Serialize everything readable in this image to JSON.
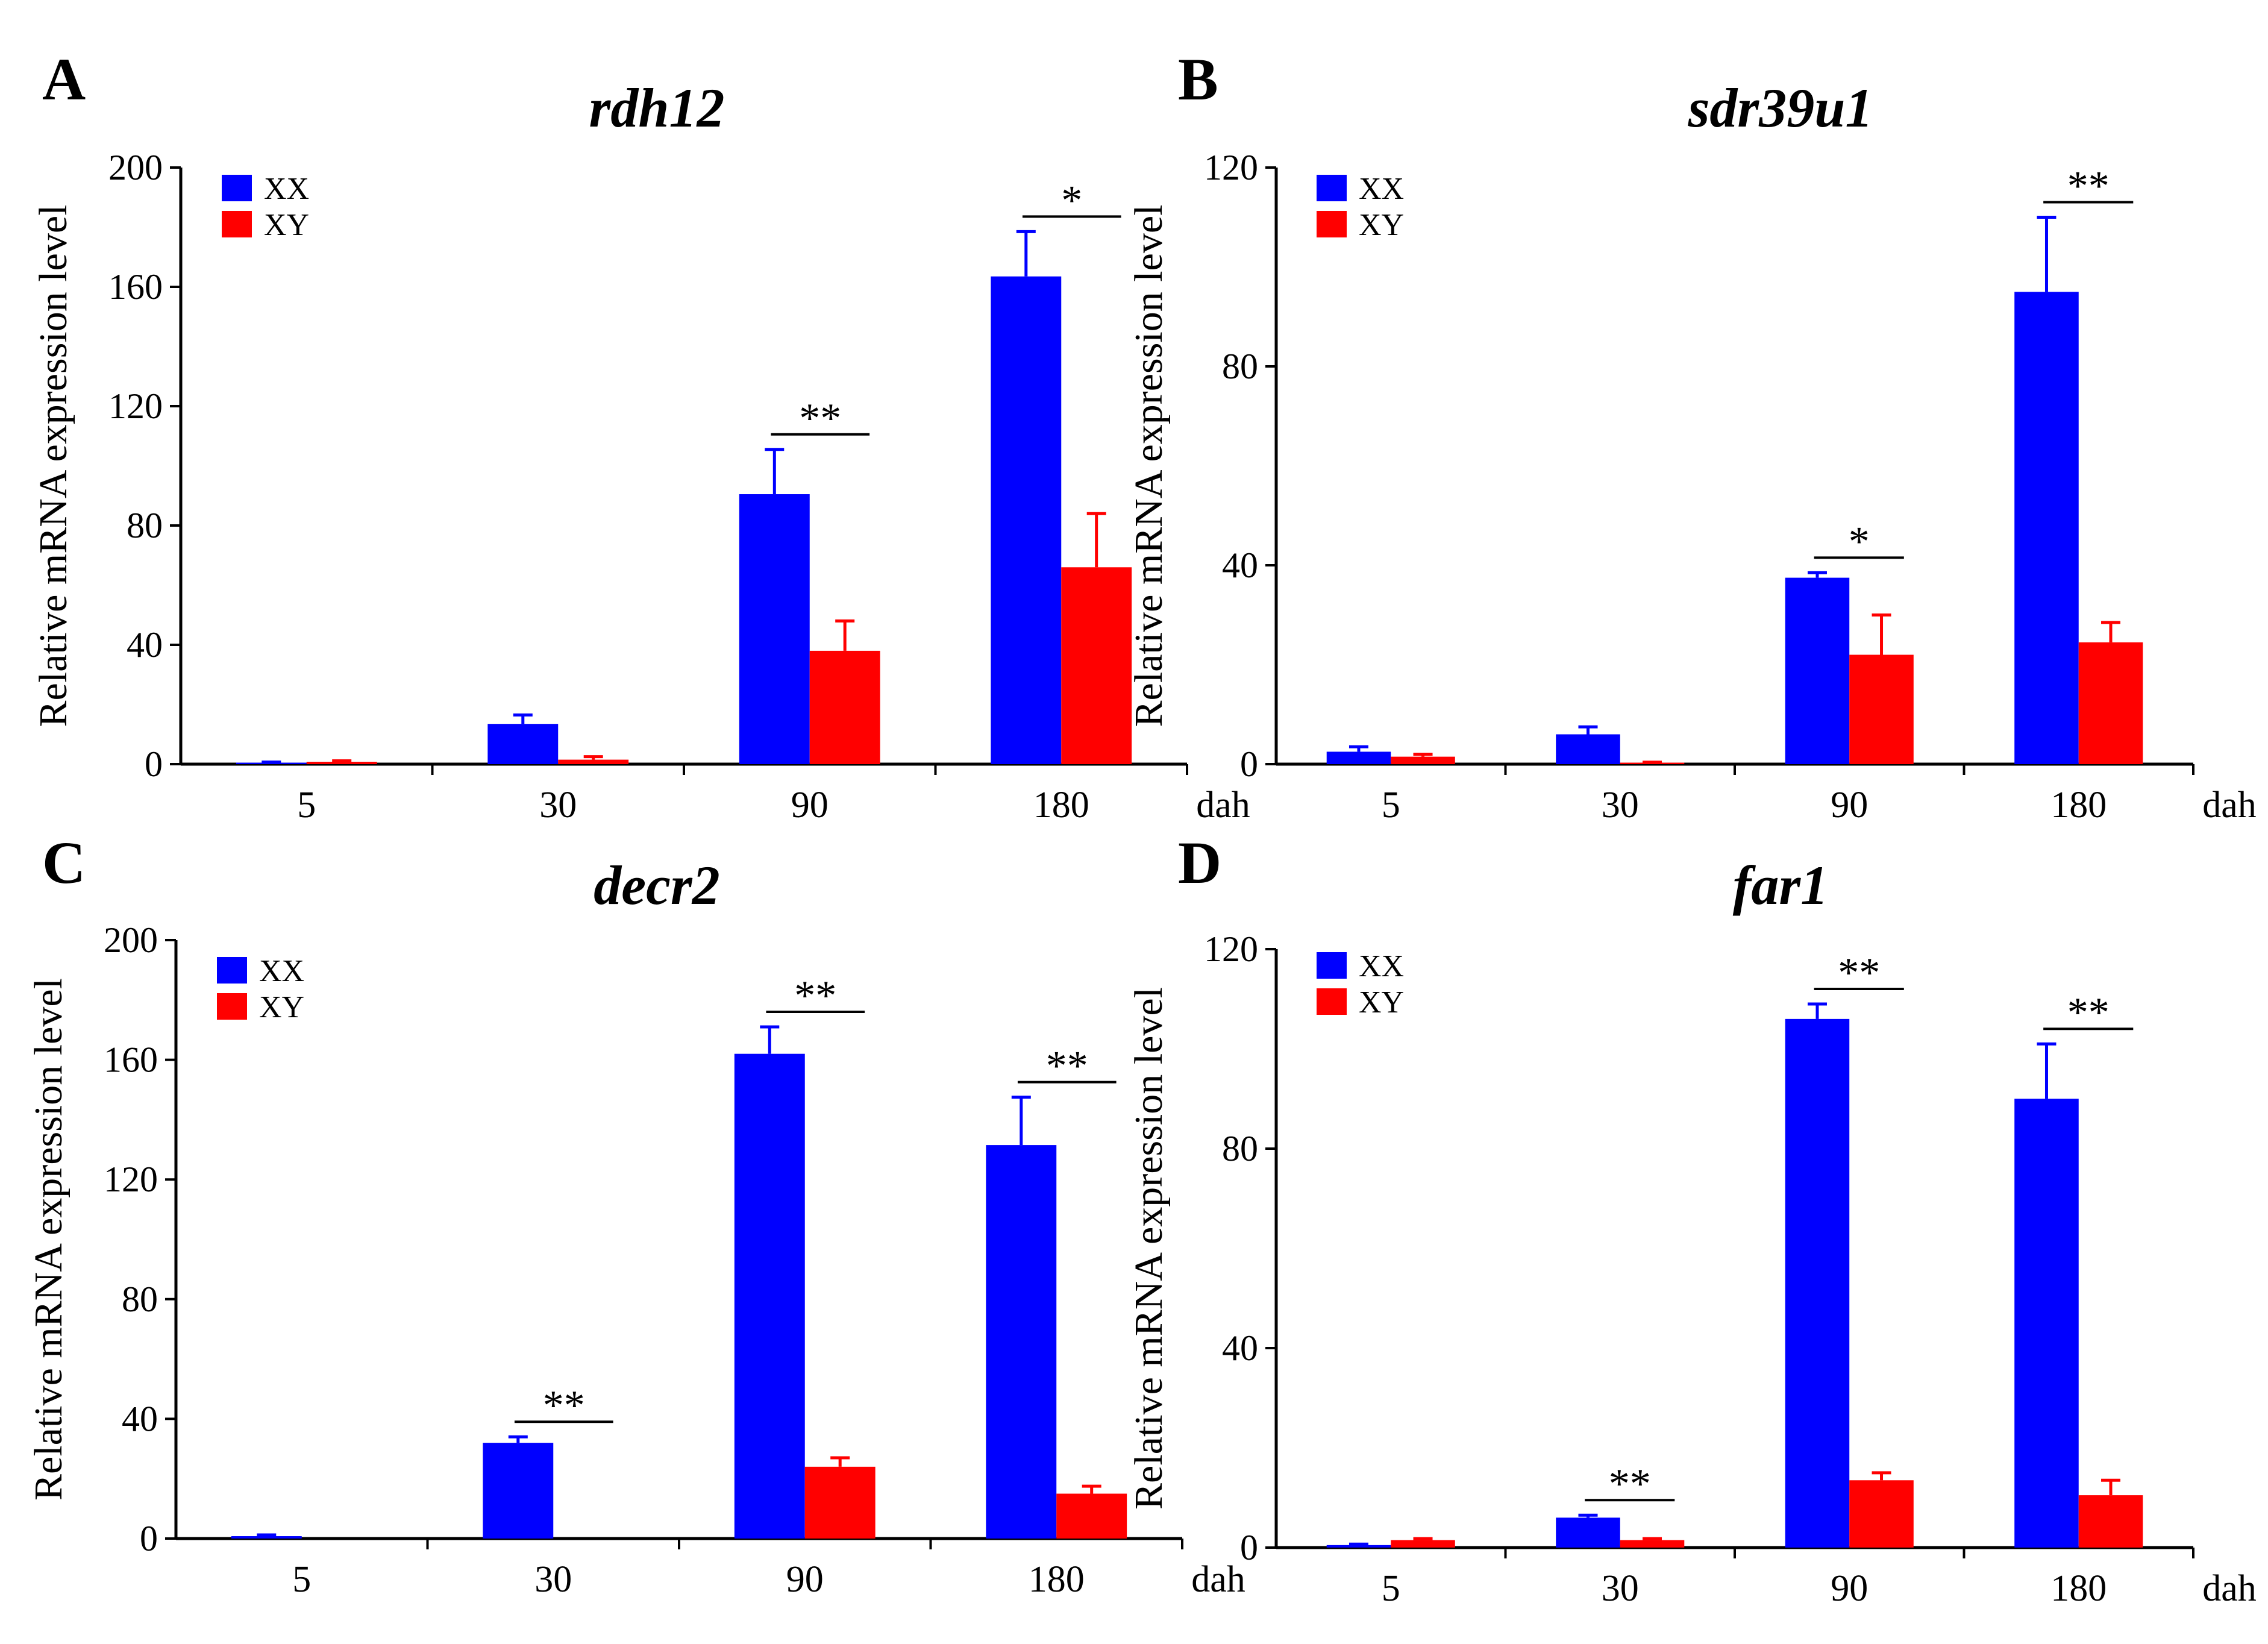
{
  "colors": {
    "XX": "#0000ff",
    "XY": "#ff0000",
    "axis": "#000000"
  },
  "chart_data": [
    {
      "panel_label": "A",
      "type": "bar",
      "title": "rdh12",
      "ylabel": "Relative mRNA expression level",
      "xunit": "dah",
      "categories": [
        "5",
        "30",
        "90",
        "180"
      ],
      "ylim": [
        0,
        200
      ],
      "yticks": [
        "0",
        "40",
        "80",
        "120",
        "160",
        "200"
      ],
      "legend_position": "top-left",
      "series": [
        {
          "name": "XX",
          "color": "#0000ff",
          "values": [
            0.5,
            13.5,
            90.5,
            163.5
          ],
          "errors": [
            0.2,
            3,
            15,
            15
          ]
        },
        {
          "name": "XY",
          "color": "#ff0000",
          "values": [
            0.8,
            1.5,
            38,
            66
          ],
          "errors": [
            0.3,
            1,
            10,
            18
          ]
        }
      ],
      "significance": [
        {
          "category_index": 2,
          "label": "**"
        },
        {
          "category_index": 3,
          "label": "*"
        }
      ]
    },
    {
      "panel_label": "B",
      "type": "bar",
      "title": "sdr39u1",
      "ylabel": "Relative mRNA expression level",
      "xunit": "dah",
      "categories": [
        "5",
        "30",
        "90",
        "180"
      ],
      "ylim": [
        0,
        120
      ],
      "yticks": [
        "0",
        "40",
        "80",
        "120"
      ],
      "legend_position": "top-left",
      "series": [
        {
          "name": "XX",
          "color": "#0000ff",
          "values": [
            2.5,
            6,
            37.5,
            95
          ],
          "errors": [
            1,
            1.5,
            1,
            15
          ]
        },
        {
          "name": "XY",
          "color": "#ff0000",
          "values": [
            1.5,
            0.3,
            22,
            24.5
          ],
          "errors": [
            0.5,
            0.1,
            8,
            4
          ]
        }
      ],
      "significance": [
        {
          "category_index": 2,
          "label": "*"
        },
        {
          "category_index": 3,
          "label": "**"
        }
      ]
    },
    {
      "panel_label": "C",
      "type": "bar",
      "title": "decr2",
      "ylabel": "Relative mRNA expression level",
      "xunit": "dah",
      "categories": [
        "5",
        "30",
        "90",
        "180"
      ],
      "ylim": [
        0,
        200
      ],
      "yticks": [
        "0",
        "40",
        "80",
        "120",
        "160",
        "200"
      ],
      "legend_position": "top-left",
      "series": [
        {
          "name": "XX",
          "color": "#0000ff",
          "values": [
            0.8,
            32,
            162,
            131.5
          ],
          "errors": [
            0.4,
            2,
            9,
            16
          ]
        },
        {
          "name": "XY",
          "color": "#ff0000",
          "values": [
            0,
            0,
            24,
            15
          ],
          "errors": [
            0,
            0,
            3,
            2.5
          ]
        }
      ],
      "significance": [
        {
          "category_index": 1,
          "label": "**"
        },
        {
          "category_index": 2,
          "label": "**"
        },
        {
          "category_index": 3,
          "label": "**"
        }
      ]
    },
    {
      "panel_label": "D",
      "type": "bar",
      "title": "far1",
      "ylabel": "Relative mRNA expression level",
      "xunit": "dah",
      "categories": [
        "5",
        "30",
        "90",
        "180"
      ],
      "ylim": [
        0,
        120
      ],
      "yticks": [
        "0",
        "40",
        "80",
        "120"
      ],
      "legend_position": "top-left",
      "series": [
        {
          "name": "XX",
          "color": "#0000ff",
          "values": [
            0.5,
            6,
            106,
            90
          ],
          "errors": [
            0.2,
            0.5,
            3,
            11
          ]
        },
        {
          "name": "XY",
          "color": "#ff0000",
          "values": [
            1.5,
            1.5,
            13.5,
            10.5
          ],
          "errors": [
            0.3,
            0.3,
            1.5,
            3
          ]
        }
      ],
      "significance": [
        {
          "category_index": 1,
          "label": "**"
        },
        {
          "category_index": 2,
          "label": "**"
        },
        {
          "category_index": 3,
          "label": "**"
        }
      ]
    }
  ]
}
